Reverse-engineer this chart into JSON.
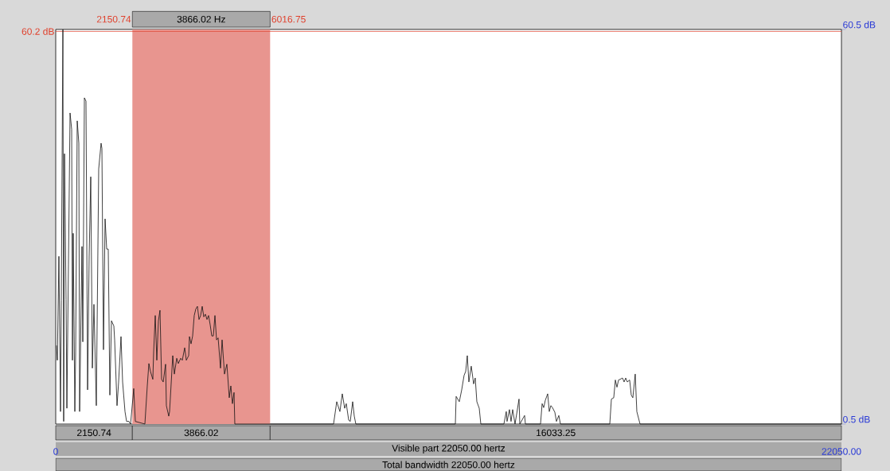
{
  "chart_data": {
    "type": "line",
    "xlim": [
      0,
      22050
    ],
    "ylim": [
      0.5,
      60.5
    ],
    "xticks": [
      0,
      {
        "value": 22050,
        "label": "22050.00"
      }
    ],
    "yticks": [
      {
        "value": 0.5,
        "label": "0.5 dB"
      },
      {
        "value": 60.5,
        "label": "60.5 dB"
      }
    ],
    "bands": [
      {
        "axis": "x",
        "from": 2150.74,
        "to": 6016.75,
        "label": "3866.02 Hz",
        "color": "#e8958f"
      }
    ],
    "ref_lines": [
      {
        "axis": "y",
        "value": 60.2,
        "label": "60.2 dB",
        "color": "#e0402c"
      }
    ],
    "annotations": [
      "2150.74",
      "6016.75",
      "2150.74",
      "3866.02",
      "16033.25",
      "Visible part 22050.00 hertz",
      "Total bandwidth 22050.00 hertz"
    ],
    "series": [
      {
        "color": "#111111",
        "x": [
          22,
          45,
          89,
          134,
          156,
          201,
          223,
          246,
          290,
          313,
          357,
          402,
          447,
          469,
          491,
          536,
          559,
          603,
          648,
          670,
          737,
          760,
          804,
          849,
          894,
          938,
          983,
          1028,
          1072,
          1139,
          1206,
          1273,
          1296,
          1340,
          1385,
          1430,
          1474,
          1519,
          1564,
          1631,
          1653,
          1720,
          1765,
          1832,
          1877,
          1944,
          1988,
          2055,
          2100,
          2189,
          2234,
          2502,
          2569,
          2614,
          2658,
          2725,
          2748,
          2793,
          2837,
          2882,
          2926,
          2971,
          3016,
          3083,
          3105,
          3172,
          3195,
          3284,
          3329,
          3396,
          3440,
          3507,
          3552,
          3619,
          3664,
          3731,
          3753,
          3798,
          3842,
          3887,
          3932,
          3977,
          4021,
          4066,
          4111,
          4155,
          4200,
          4245,
          4289,
          4334,
          4379,
          4423,
          4468,
          4513,
          4557,
          4624,
          4669,
          4736,
          4803,
          4870,
          4914,
          4959,
          5004,
          5026,
          7797,
          7886,
          7975,
          8042,
          8109,
          8154,
          8221,
          8266,
          8333,
          8378,
          8422,
          11215,
          11237,
          11326,
          11393,
          11460,
          11505,
          11550,
          11594,
          11661,
          11728,
          11773,
          11818,
          11885,
          11930,
          12577,
          12644,
          12666,
          12733,
          12778,
          12823,
          12890,
          13002,
          13024,
          13158,
          13181,
          13605,
          13650,
          13694,
          13739,
          13806,
          13851,
          13895,
          13940,
          14007,
          14052,
          14119,
          14164,
          15549,
          15594,
          15660,
          15705,
          15750,
          15795,
          15839,
          15906,
          15951,
          15995,
          16040,
          16107,
          16152,
          16196,
          16263,
          16308,
          16398,
          22050
        ],
        "values": [
          12.4,
          10.2,
          26.0,
          2.4,
          19.3,
          60.5,
          0.9,
          41.6,
          19.4,
          2.9,
          24.7,
          47.8,
          45.3,
          10.2,
          29.5,
          2.4,
          11.4,
          46.6,
          43.2,
          2.4,
          27.5,
          13.0,
          50.1,
          49.6,
          5.7,
          25.9,
          38.1,
          9.0,
          18.7,
          3.3,
          39.3,
          43.2,
          42.4,
          11.8,
          31.7,
          27.1,
          27.1,
          4.9,
          16.2,
          15.4,
          13.3,
          3.3,
          6.9,
          13.8,
          6.9,
          2.4,
          0.9,
          0.9,
          0.5,
          5.9,
          0.9,
          0.5,
          6.3,
          9.7,
          8.5,
          7.3,
          11.5,
          17.0,
          10.2,
          16.2,
          17.8,
          7.3,
          6.9,
          9.6,
          3.3,
          1.7,
          2.4,
          10.9,
          8.1,
          10.5,
          9.7,
          10.5,
          10.2,
          12.1,
          10.2,
          10.9,
          13.8,
          12.7,
          13.9,
          17.0,
          18.0,
          18.4,
          16.4,
          17.0,
          18.4,
          16.8,
          17.2,
          16.4,
          17.0,
          15.6,
          13.9,
          13.9,
          17.0,
          13.3,
          13.6,
          9.0,
          13.3,
          8.1,
          9.6,
          4.5,
          6.3,
          3.6,
          5.3,
          0.5,
          0.5,
          3.9,
          2.4,
          5.1,
          2.9,
          3.6,
          1.1,
          0.9,
          3.9,
          1.7,
          0.5,
          0.5,
          4.7,
          3.9,
          5.7,
          7.9,
          8.5,
          10.9,
          6.9,
          9.3,
          6.6,
          7.5,
          3.9,
          2.9,
          0.5,
          0.5,
          2.4,
          0.9,
          2.7,
          0.9,
          2.7,
          0.5,
          4.3,
          0.5,
          1.8,
          0.5,
          0.5,
          3.6,
          3.0,
          4.1,
          5.1,
          2.4,
          3.3,
          3.0,
          2.3,
          0.9,
          1.8,
          0.5,
          0.5,
          4.3,
          4.5,
          7.2,
          6.1,
          7.2,
          7.3,
          7.5,
          6.9,
          7.5,
          6.9,
          7.2,
          4.9,
          4.5,
          8.1,
          2.4,
          0.5,
          0.5
        ]
      }
    ]
  }
}
